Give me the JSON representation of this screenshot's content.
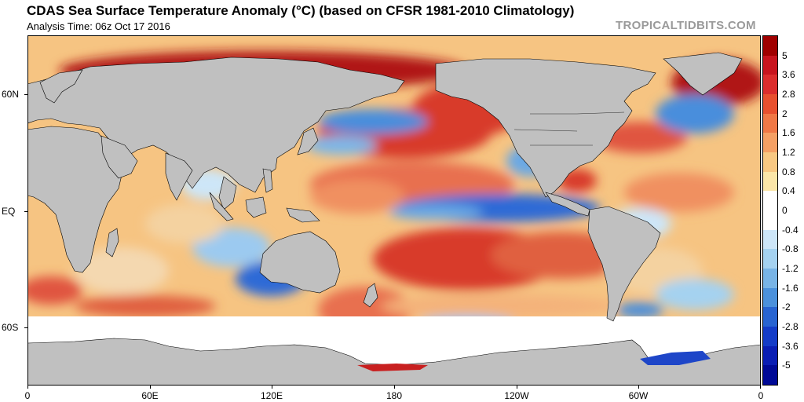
{
  "header": {
    "title": "CDAS Sea Surface Temperature Anomaly (°C) (based on CFSR 1981-2010 Climatology)",
    "subtitle": "Analysis Time: 06z Oct 17 2016",
    "brand": "TROPICALTIDBITS.COM"
  },
  "map": {
    "projection": "equirectangular",
    "x_axis_labels": [
      "0",
      "60E",
      "120E",
      "180",
      "120W",
      "60W",
      "0"
    ],
    "y_axis_labels": [
      "60N",
      "EQ",
      "60S"
    ],
    "land_color": "#c0c0c0",
    "ice_color": "#ffffff"
  },
  "colorbar": {
    "labels": [
      "5",
      "3.6",
      "2.8",
      "2",
      "1.6",
      "1.2",
      "0.8",
      "0.4",
      "0",
      "-0.4",
      "-0.8",
      "-1.2",
      "-1.6",
      "-2",
      "-2.8",
      "-3.6",
      "-5"
    ],
    "colors": [
      "#a00000",
      "#c8141e",
      "#dc2d2d",
      "#e8502f",
      "#f07846",
      "#f5a064",
      "#f8c882",
      "#fbe6a8",
      "#ffffff",
      "#ffffff",
      "#cde6f8",
      "#a5d2f0",
      "#78b4e6",
      "#4b91dc",
      "#2864d2",
      "#143cc8",
      "#0a1eb4",
      "#000a96"
    ]
  }
}
